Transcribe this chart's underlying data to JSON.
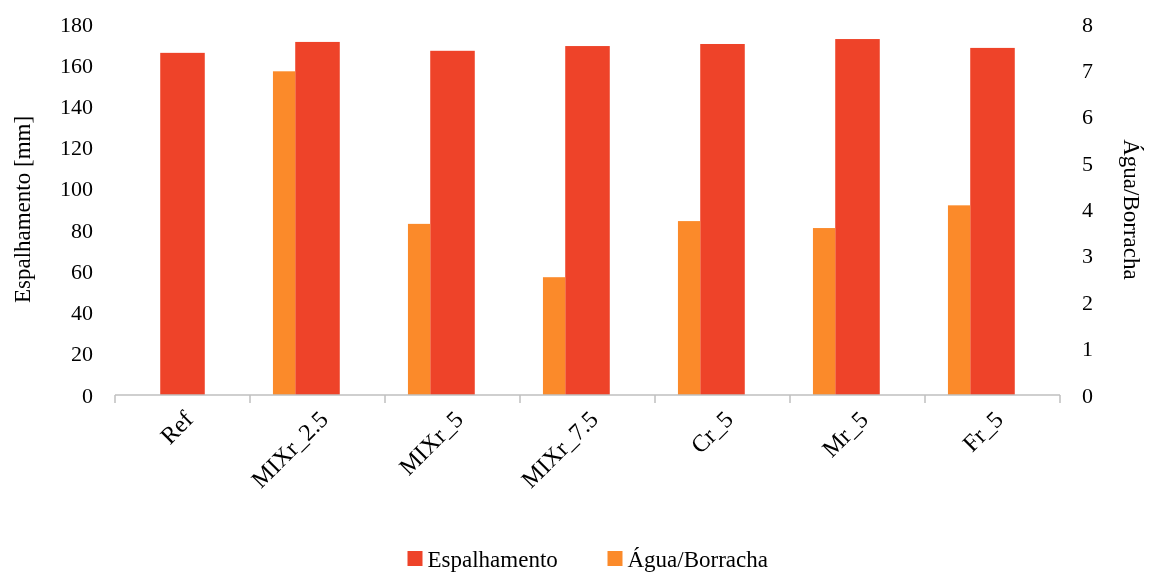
{
  "chart_data": {
    "type": "bar",
    "ylabel": "Espalhamento [mm]",
    "y2label": "Água/Borracha",
    "categories": [
      "Ref",
      "MIXr_2.5",
      "MIXr_5",
      "MIXr_7.5",
      "Cr_5",
      "Mr_5",
      "Fr_5"
    ],
    "series": [
      {
        "name": "Espalhamento",
        "color": "#ee4329",
        "values": [
          166,
          171.3,
          167,
          169.3,
          170.3,
          172.7,
          168.4
        ]
      },
      {
        "name": "Água/Borracha",
        "color": "#fb8a2a",
        "axis": "y2",
        "values": [
          null,
          6.98,
          3.69,
          2.54,
          3.75,
          3.6,
          4.09
        ]
      }
    ],
    "ylim": [
      0,
      180
    ],
    "yticks": [
      0,
      20,
      40,
      60,
      80,
      100,
      120,
      140,
      160,
      180
    ],
    "y2lim": [
      0,
      8
    ],
    "y2ticks": [
      0,
      1,
      2,
      3,
      4,
      5,
      6,
      7,
      8
    ],
    "grid": false,
    "legend": "bottom"
  }
}
